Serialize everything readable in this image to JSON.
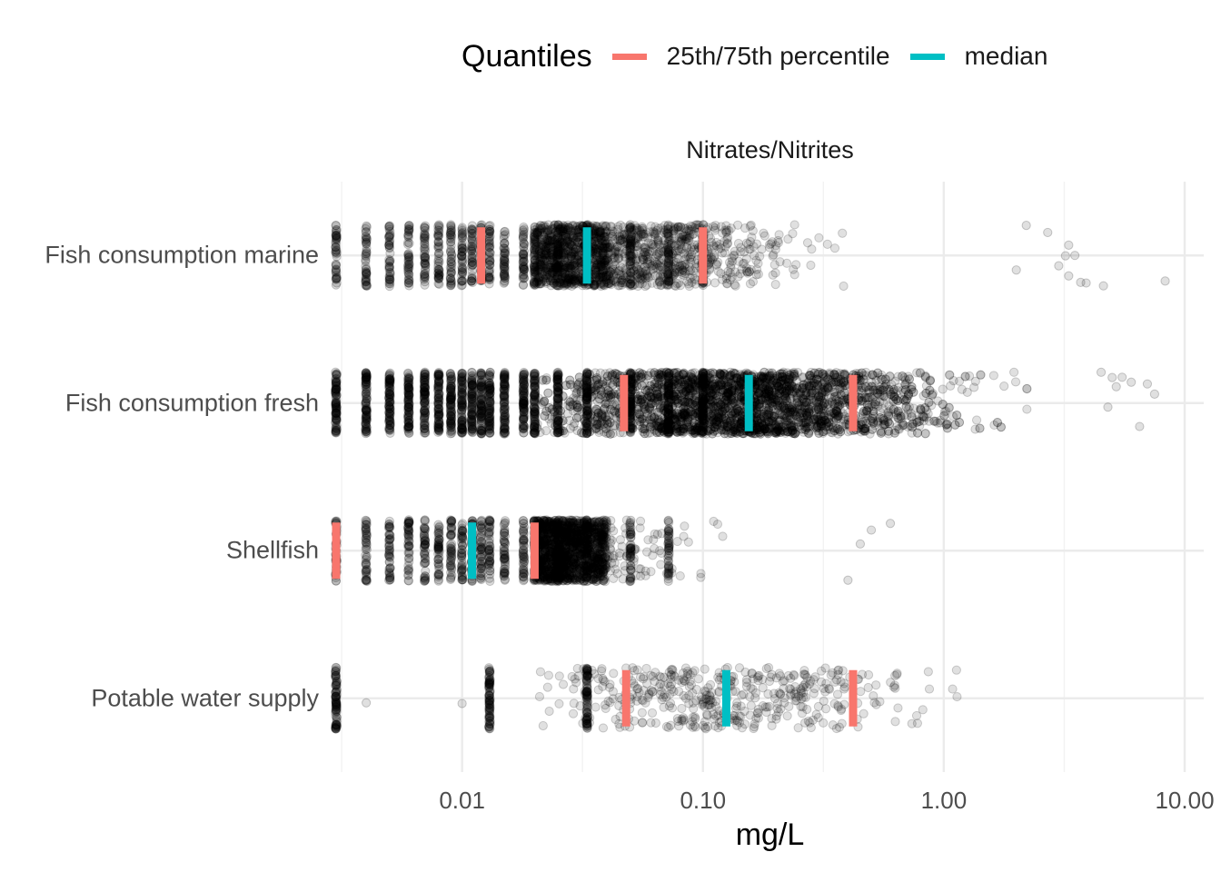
{
  "legend": {
    "title": "Quantiles",
    "items": [
      {
        "label": "25th/75th percentile",
        "color": "#F8766D"
      },
      {
        "label": "median",
        "color": "#00BFC4"
      }
    ]
  },
  "chart_data": {
    "type": "scatter",
    "subtype": "jittered strip plot with quantile markers",
    "facet_title": "Nitrates/Nitrites",
    "xlabel": "mg/L",
    "ylabel": "",
    "x_scale": "log10",
    "xlim": [
      0.003,
      12
    ],
    "x_ticks": [
      0.01,
      0.1,
      1,
      10
    ],
    "x_tick_labels": [
      "0.01",
      "0.10",
      "1.00",
      "10.00"
    ],
    "grid": true,
    "legend_position": "top",
    "point_color": "#000000",
    "categories": [
      "Fish consumption marine",
      "Fish consumption fresh",
      "Shellfish",
      "Potable water supply"
    ],
    "series": [
      {
        "category": "Fish consumption marine",
        "point_count_approx": 2500,
        "range": [
          0.003,
          8.3
        ],
        "dense_max": 1.5,
        "discrete_values": [
          0.003,
          0.004,
          0.005,
          0.006,
          0.007,
          0.008,
          0.009,
          0.01,
          0.011,
          0.012,
          0.013,
          0.015,
          0.018,
          0.02,
          0.025,
          0.033,
          0.05,
          0.072,
          0.1
        ],
        "outliers": [
          8.3,
          3.7,
          3.3,
          2.2,
          2.0,
          3.0,
          3.2,
          2.7,
          3.5,
          3.9,
          3.3,
          4.6
        ],
        "quantile_p25": 0.012,
        "median": 0.033,
        "quantile_p75": 0.1
      },
      {
        "category": "Fish consumption fresh",
        "point_count_approx": 5000,
        "range": [
          0.003,
          7.5
        ],
        "dense_max": 3.0,
        "discrete_values": [
          0.003,
          0.004,
          0.005,
          0.006,
          0.007,
          0.008,
          0.009,
          0.01,
          0.011,
          0.012,
          0.013,
          0.015,
          0.018,
          0.02,
          0.025,
          0.033,
          0.05,
          0.072,
          0.1
        ],
        "outliers": [
          5.0,
          5.5,
          6.0,
          6.5,
          7.0,
          7.5,
          4.5,
          4.8,
          5.2
        ],
        "quantile_p25": 0.047,
        "median": 0.155,
        "quantile_p75": 0.42
      },
      {
        "category": "Shellfish",
        "point_count_approx": 2500,
        "range": [
          0.003,
          0.6
        ],
        "dense_max": 0.3,
        "discrete_values": [
          0.003,
          0.004,
          0.005,
          0.006,
          0.007,
          0.008,
          0.009,
          0.01,
          0.011,
          0.012,
          0.013,
          0.015,
          0.018,
          0.02,
          0.025,
          0.033,
          0.05,
          0.072
        ],
        "outliers": [
          0.4,
          0.45,
          0.5,
          0.6
        ],
        "quantile_p25": 0.003,
        "median": 0.011,
        "quantile_p75": 0.02
      },
      {
        "category": "Potable water supply",
        "point_count_approx": 700,
        "range": [
          0.003,
          1.3
        ],
        "dense_max": 1.3,
        "discrete_values": [
          0.003,
          0.013,
          0.033
        ],
        "outliers": [
          0.004,
          0.01
        ],
        "quantile_p25": 0.048,
        "median": 0.125,
        "quantile_p75": 0.42
      }
    ]
  }
}
